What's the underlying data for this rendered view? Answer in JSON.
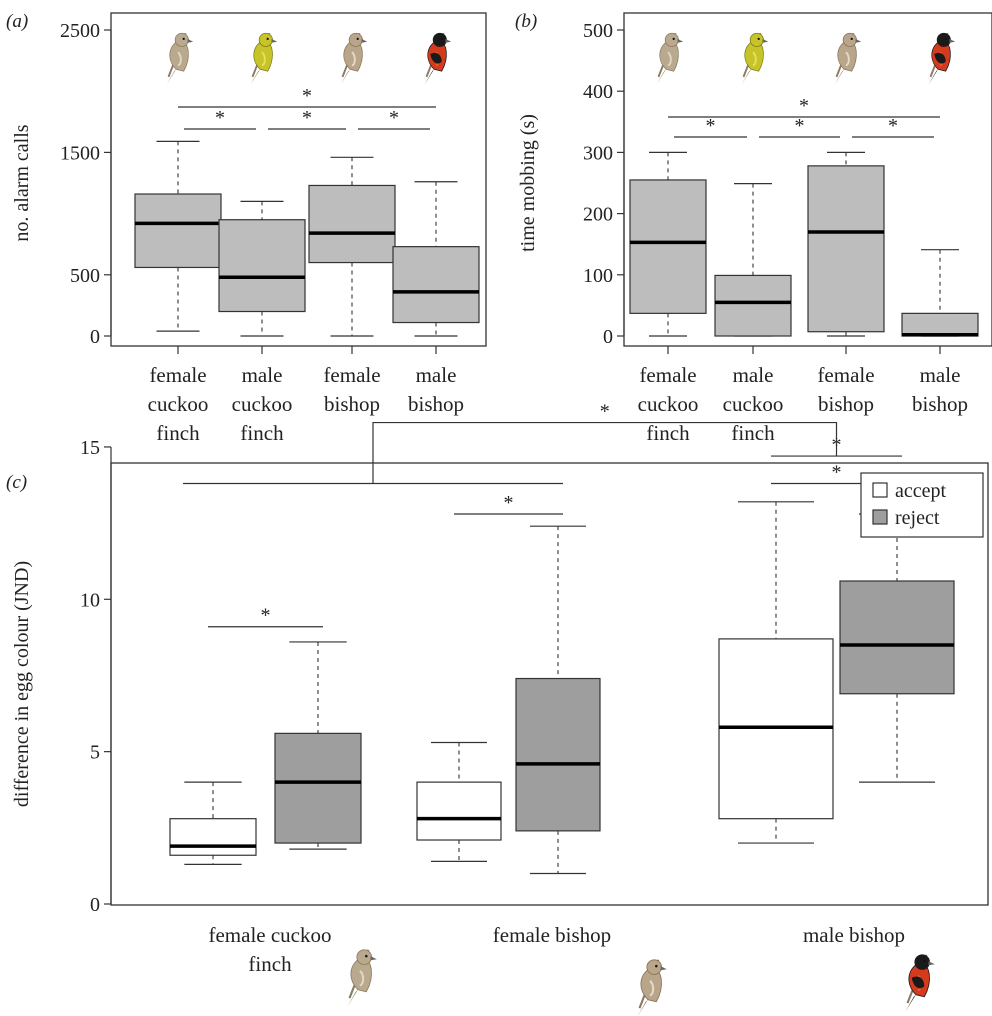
{
  "panel_labels": [
    "(a)",
    "(b)",
    "(c)"
  ],
  "sig_symbol": "*",
  "colors": {
    "box_gray": "#bdbdbd",
    "reject_gray": "#9e9e9e",
    "accept_white": "#ffffff",
    "line": "#333333"
  },
  "chart_data": [
    {
      "panel": "(a)",
      "type": "box",
      "ylabel": "no. alarm calls",
      "ylim": [
        0,
        2500
      ],
      "yticks": [
        0,
        500,
        1500,
        2500
      ],
      "categories": [
        [
          "female",
          "cuckoo",
          "finch"
        ],
        [
          "male",
          "cuckoo",
          "finch"
        ],
        [
          "female",
          "bishop"
        ],
        [
          "male",
          "bishop"
        ]
      ],
      "bird_icons": [
        "female-cuckoo-finch-bird",
        "male-cuckoo-finch-bird",
        "female-bishop-bird",
        "male-bishop-bird"
      ],
      "boxes": [
        {
          "min": 40,
          "q1": 560,
          "median": 920,
          "q3": 1160,
          "max": 1590
        },
        {
          "min": 0,
          "q1": 200,
          "median": 480,
          "q3": 950,
          "max": 1100
        },
        {
          "min": 0,
          "q1": 600,
          "median": 840,
          "q3": 1230,
          "max": 1460
        },
        {
          "min": 0,
          "q1": 110,
          "median": 360,
          "q3": 730,
          "max": 1260
        }
      ],
      "significance": [
        {
          "from": 0,
          "to": 3,
          "level": 2
        },
        {
          "from": 0,
          "to": 1,
          "level": 1
        },
        {
          "from": 1,
          "to": 2,
          "level": 1
        },
        {
          "from": 2,
          "to": 3,
          "level": 1
        }
      ]
    },
    {
      "panel": "(b)",
      "type": "box",
      "ylabel": "time mobbing (s)",
      "ylim": [
        0,
        500
      ],
      "yticks": [
        0,
        100,
        200,
        300,
        400,
        500
      ],
      "categories": [
        [
          "female",
          "cuckoo",
          "finch"
        ],
        [
          "male",
          "cuckoo",
          "finch"
        ],
        [
          "female",
          "bishop"
        ],
        [
          "male",
          "bishop"
        ]
      ],
      "bird_icons": [
        "female-cuckoo-finch-bird",
        "male-cuckoo-finch-bird",
        "female-bishop-bird",
        "male-bishop-bird"
      ],
      "boxes": [
        {
          "min": 0,
          "q1": 37,
          "median": 153,
          "q3": 255,
          "max": 300
        },
        {
          "min": 0,
          "q1": 0,
          "median": 55,
          "q3": 99,
          "max": 249
        },
        {
          "min": 0,
          "q1": 7,
          "median": 170,
          "q3": 278,
          "max": 300
        },
        {
          "min": 0,
          "q1": 0,
          "median": 2,
          "q3": 37,
          "max": 141
        }
      ],
      "significance": [
        {
          "from": 0,
          "to": 3,
          "level": 2
        },
        {
          "from": 0,
          "to": 1,
          "level": 1
        },
        {
          "from": 1,
          "to": 2,
          "level": 1
        },
        {
          "from": 2,
          "to": 3,
          "level": 1
        }
      ]
    },
    {
      "panel": "(c)",
      "type": "box",
      "ylabel": "difference in egg colour (JND)",
      "ylim": [
        0,
        17
      ],
      "yticks": [
        0,
        5,
        10,
        15
      ],
      "groups": [
        [
          "female cuckoo",
          "finch"
        ],
        [
          "female bishop"
        ],
        [
          "male bishop"
        ]
      ],
      "bird_icons": [
        "female-cuckoo-finch-bird",
        "female-bishop-bird",
        "male-bishop-bird"
      ],
      "legend": [
        {
          "name": "accept",
          "color": "#ffffff"
        },
        {
          "name": "reject",
          "color": "#9e9e9e"
        }
      ],
      "legend_position": "top-right",
      "series": [
        {
          "name": "accept",
          "boxes": [
            {
              "min": 1.3,
              "q1": 1.6,
              "median": 1.9,
              "q3": 2.8,
              "max": 4.0
            },
            {
              "min": 1.4,
              "q1": 2.1,
              "median": 2.8,
              "q3": 4.0,
              "max": 5.3
            },
            {
              "min": 2.0,
              "q1": 2.8,
              "median": 5.8,
              "q3": 8.7,
              "max": 13.2
            }
          ]
        },
        {
          "name": "reject",
          "boxes": [
            {
              "min": 1.8,
              "q1": 2.0,
              "median": 4.0,
              "q3": 5.6,
              "max": 8.6
            },
            {
              "min": 1.0,
              "q1": 2.4,
              "median": 4.6,
              "q3": 7.4,
              "max": 12.4
            },
            {
              "min": 4.0,
              "q1": 6.9,
              "median": 8.5,
              "q3": 10.6,
              "max": 12.8
            }
          ]
        }
      ],
      "significance": [
        {
          "group": 0,
          "value": 9.1
        },
        {
          "group": 1,
          "value": 12.8
        },
        {
          "group": 2,
          "value": 13.8
        },
        {
          "group": 2,
          "value": 14.7
        }
      ],
      "group_comparison": {
        "y_low": 13.8,
        "y_high": 15.8,
        "left_groups": [
          0,
          1
        ],
        "right_group": 2
      }
    }
  ]
}
